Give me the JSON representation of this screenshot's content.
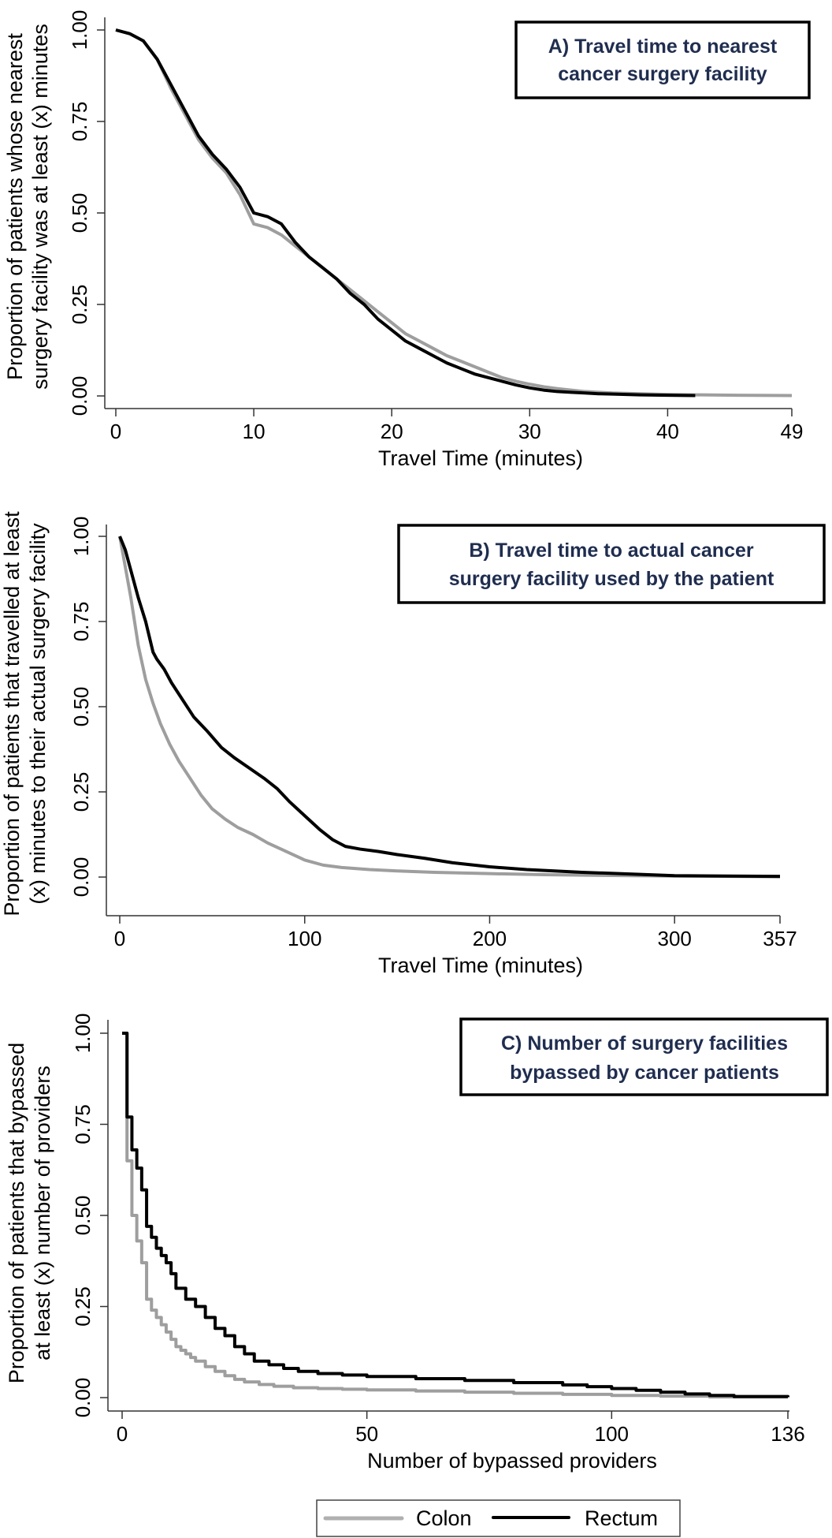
{
  "figure": {
    "legend": {
      "items": [
        {
          "label": "Colon",
          "color": "#b0b0b0"
        },
        {
          "label": "Rectum",
          "color": "#000000"
        }
      ],
      "placement": "bottom-center"
    }
  },
  "chart_data": [
    {
      "type": "line",
      "panel_title_lines": [
        "A) Travel time to nearest",
        "cancer surgery facility"
      ],
      "title": "A) Travel time to nearest cancer surgery facility",
      "xlabel": "Travel Time (minutes)",
      "ylabel_lines": [
        "Proportion of patients whose nearest",
        "surgery facility was at least (x) minutes"
      ],
      "ylabel": "Proportion of patients whose nearest surgery facility was at least (x) minutes",
      "xlim": [
        0,
        49
      ],
      "ylim": [
        0,
        1
      ],
      "x_ticks": [
        0,
        10,
        20,
        30,
        40,
        49
      ],
      "x_tick_labels": [
        "0",
        "10",
        "20",
        "30",
        "40",
        "49"
      ],
      "y_ticks": [
        0,
        0.25,
        0.5,
        0.75,
        1
      ],
      "y_tick_labels": [
        "0.00",
        "0.25",
        "0.50",
        "0.75",
        "1.00"
      ],
      "grid": false,
      "series": [
        {
          "name": "Colon",
          "color": "#9e9e9e",
          "x": [
            0,
            1,
            2,
            3,
            4,
            5,
            6,
            7,
            8,
            9,
            10,
            11,
            12,
            13,
            14,
            15,
            16,
            17,
            18,
            19,
            20,
            21,
            22,
            23,
            24,
            25,
            26,
            27,
            28,
            29,
            30,
            31,
            32,
            33,
            34,
            35,
            36,
            38,
            40,
            42,
            45,
            49
          ],
          "y": [
            1.0,
            0.99,
            0.97,
            0.92,
            0.84,
            0.77,
            0.7,
            0.65,
            0.61,
            0.55,
            0.47,
            0.46,
            0.44,
            0.41,
            0.38,
            0.35,
            0.32,
            0.29,
            0.26,
            0.23,
            0.2,
            0.17,
            0.15,
            0.13,
            0.11,
            0.095,
            0.08,
            0.065,
            0.05,
            0.04,
            0.032,
            0.025,
            0.02,
            0.016,
            0.012,
            0.01,
            0.008,
            0.006,
            0.004,
            0.003,
            0.002,
            0.001
          ]
        },
        {
          "name": "Rectum",
          "color": "#000000",
          "x": [
            0,
            1,
            2,
            3,
            4,
            5,
            6,
            7,
            8,
            9,
            10,
            11,
            12,
            13,
            14,
            15,
            16,
            17,
            18,
            19,
            20,
            21,
            22,
            23,
            24,
            25,
            26,
            27,
            28,
            29,
            30,
            31,
            32,
            33,
            34,
            35,
            36,
            38,
            40,
            42
          ],
          "y": [
            1.0,
            0.99,
            0.97,
            0.92,
            0.85,
            0.78,
            0.71,
            0.66,
            0.62,
            0.57,
            0.5,
            0.49,
            0.47,
            0.42,
            0.38,
            0.35,
            0.32,
            0.28,
            0.25,
            0.21,
            0.18,
            0.15,
            0.13,
            0.11,
            0.09,
            0.075,
            0.06,
            0.05,
            0.04,
            0.03,
            0.022,
            0.016,
            0.012,
            0.01,
            0.008,
            0.006,
            0.005,
            0.003,
            0.002,
            0.001
          ]
        }
      ]
    },
    {
      "type": "line",
      "panel_title_lines": [
        "B) Travel time to actual cancer",
        "surgery facility used by the patient"
      ],
      "title": "B) Travel time to actual cancer surgery facility used by the patient",
      "xlabel": "Travel Time (minutes)",
      "ylabel_lines": [
        "Proportion of patients that travelled at least",
        "(x) minutes to their actual surgery facility"
      ],
      "ylabel": "Proportion of patients that travelled at least (x) minutes to their actual surgery facility",
      "xlim": [
        0,
        357
      ],
      "ylim": [
        0,
        1
      ],
      "x_ticks": [
        0,
        100,
        200,
        300,
        357
      ],
      "x_tick_labels": [
        "0",
        "100",
        "200",
        "300",
        "357"
      ],
      "y_ticks": [
        0,
        0.25,
        0.5,
        0.75,
        1
      ],
      "y_tick_labels": [
        "0.00",
        "0.25",
        "0.50",
        "0.75",
        "1.00"
      ],
      "grid": false,
      "series": [
        {
          "name": "Colon",
          "color": "#9e9e9e",
          "x": [
            0,
            3,
            6,
            10,
            14,
            18,
            22,
            27,
            32,
            38,
            44,
            50,
            57,
            64,
            72,
            80,
            90,
            100,
            110,
            120,
            135,
            150,
            170,
            200,
            230,
            260,
            300,
            330,
            357
          ],
          "y": [
            1.0,
            0.91,
            0.82,
            0.68,
            0.58,
            0.51,
            0.45,
            0.39,
            0.34,
            0.29,
            0.24,
            0.2,
            0.17,
            0.145,
            0.125,
            0.1,
            0.075,
            0.05,
            0.035,
            0.028,
            0.022,
            0.018,
            0.014,
            0.01,
            0.007,
            0.005,
            0.003,
            0.002,
            0.001
          ]
        },
        {
          "name": "Rectum",
          "color": "#000000",
          "x": [
            0,
            3,
            6,
            10,
            14,
            18,
            20,
            24,
            28,
            34,
            40,
            47,
            55,
            62,
            70,
            78,
            85,
            92,
            100,
            108,
            115,
            122,
            130,
            140,
            150,
            165,
            180,
            200,
            220,
            250,
            280,
            300,
            330,
            357
          ],
          "y": [
            1.0,
            0.96,
            0.9,
            0.82,
            0.75,
            0.66,
            0.64,
            0.61,
            0.57,
            0.52,
            0.47,
            0.43,
            0.38,
            0.35,
            0.32,
            0.29,
            0.26,
            0.22,
            0.18,
            0.14,
            0.11,
            0.09,
            0.082,
            0.075,
            0.066,
            0.055,
            0.042,
            0.03,
            0.022,
            0.014,
            0.008,
            0.004,
            0.003,
            0.002
          ]
        }
      ]
    },
    {
      "type": "line",
      "panel_title_lines": [
        "C) Number of surgery facilities",
        "bypassed by cancer patients"
      ],
      "title": "C) Number of surgery facilities bypassed by cancer patients",
      "xlabel": "Number of bypassed providers",
      "ylabel_lines": [
        "Proportion of patients that bypassed",
        "at least (x) number of providers"
      ],
      "ylabel": "Proportion of patients that bypassed at least (x) number of providers",
      "xlim": [
        0,
        136
      ],
      "ylim": [
        0,
        1
      ],
      "x_ticks": [
        0,
        50,
        100,
        136
      ],
      "x_tick_labels": [
        "0",
        "50",
        "100",
        "136"
      ],
      "y_ticks": [
        0,
        0.25,
        0.5,
        0.75,
        1
      ],
      "y_tick_labels": [
        "0.00",
        "0.25",
        "0.50",
        "0.75",
        "1.00"
      ],
      "grid": false,
      "series": [
        {
          "name": "Colon",
          "color": "#9e9e9e",
          "x": [
            0,
            1,
            2,
            3,
            4,
            5,
            6,
            7,
            8,
            9,
            10,
            11,
            12,
            13,
            14,
            15,
            17,
            19,
            21,
            23,
            25,
            28,
            31,
            35,
            40,
            45,
            50,
            60,
            70,
            80,
            90,
            100,
            110,
            120,
            136
          ],
          "y": [
            1.0,
            0.65,
            0.5,
            0.43,
            0.37,
            0.27,
            0.24,
            0.22,
            0.2,
            0.18,
            0.16,
            0.14,
            0.13,
            0.12,
            0.11,
            0.1,
            0.085,
            0.072,
            0.06,
            0.05,
            0.043,
            0.036,
            0.031,
            0.027,
            0.025,
            0.023,
            0.021,
            0.018,
            0.015,
            0.012,
            0.009,
            0.006,
            0.004,
            0.002,
            0.001
          ]
        },
        {
          "name": "Rectum",
          "color": "#000000",
          "x": [
            0,
            1,
            2,
            3,
            4,
            5,
            6,
            7,
            8,
            9,
            10,
            11,
            13,
            15,
            17,
            19,
            21,
            23,
            25,
            27,
            30,
            33,
            36,
            40,
            45,
            50,
            60,
            70,
            80,
            90,
            95,
            100,
            105,
            110,
            115,
            120,
            125,
            136
          ],
          "y": [
            1.0,
            0.77,
            0.68,
            0.63,
            0.57,
            0.47,
            0.44,
            0.41,
            0.39,
            0.37,
            0.34,
            0.3,
            0.27,
            0.25,
            0.22,
            0.19,
            0.17,
            0.14,
            0.12,
            0.1,
            0.09,
            0.08,
            0.072,
            0.066,
            0.062,
            0.058,
            0.052,
            0.047,
            0.041,
            0.035,
            0.03,
            0.025,
            0.02,
            0.015,
            0.01,
            0.006,
            0.003,
            0.001
          ]
        }
      ]
    }
  ]
}
